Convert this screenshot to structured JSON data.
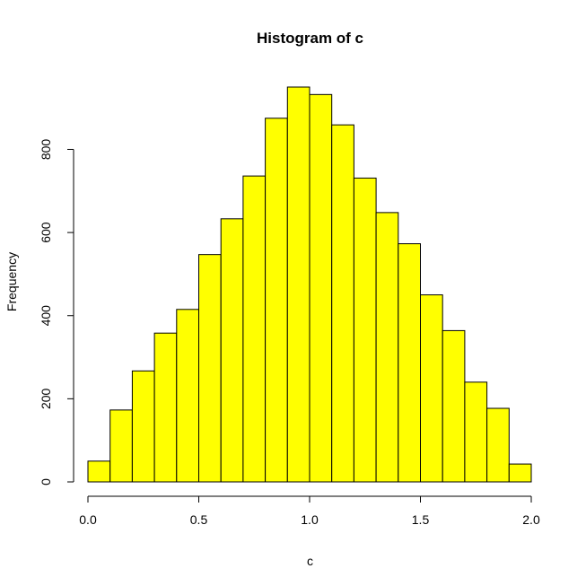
{
  "chart_data": {
    "type": "bar",
    "title": "Histogram of c",
    "xlabel": "c",
    "ylabel": "Frequency",
    "bins": [
      {
        "x0": 0.0,
        "x1": 0.1,
        "count": 50
      },
      {
        "x0": 0.1,
        "x1": 0.2,
        "count": 173
      },
      {
        "x0": 0.2,
        "x1": 0.3,
        "count": 267
      },
      {
        "x0": 0.3,
        "x1": 0.4,
        "count": 358
      },
      {
        "x0": 0.4,
        "x1": 0.5,
        "count": 415
      },
      {
        "x0": 0.5,
        "x1": 0.6,
        "count": 547
      },
      {
        "x0": 0.6,
        "x1": 0.7,
        "count": 633
      },
      {
        "x0": 0.7,
        "x1": 0.8,
        "count": 736
      },
      {
        "x0": 0.8,
        "x1": 0.9,
        "count": 875
      },
      {
        "x0": 0.9,
        "x1": 1.0,
        "count": 950
      },
      {
        "x0": 1.0,
        "x1": 1.1,
        "count": 932
      },
      {
        "x0": 1.1,
        "x1": 1.2,
        "count": 859
      },
      {
        "x0": 1.2,
        "x1": 1.3,
        "count": 731
      },
      {
        "x0": 1.3,
        "x1": 1.4,
        "count": 648
      },
      {
        "x0": 1.4,
        "x1": 1.5,
        "count": 573
      },
      {
        "x0": 1.5,
        "x1": 1.6,
        "count": 450
      },
      {
        "x0": 1.6,
        "x1": 1.7,
        "count": 364
      },
      {
        "x0": 1.7,
        "x1": 1.8,
        "count": 240
      },
      {
        "x0": 1.8,
        "x1": 1.9,
        "count": 177
      },
      {
        "x0": 1.9,
        "x1": 2.0,
        "count": 43
      }
    ],
    "x_ticks": [
      "0.0",
      "0.5",
      "1.0",
      "1.5",
      "2.0"
    ],
    "y_ticks": [
      "0",
      "200",
      "400",
      "600",
      "800"
    ],
    "xlim": [
      0,
      2
    ],
    "ylim": [
      0,
      950
    ],
    "grid": false,
    "bar_color": "#ffff00",
    "border_color": "#000000"
  }
}
